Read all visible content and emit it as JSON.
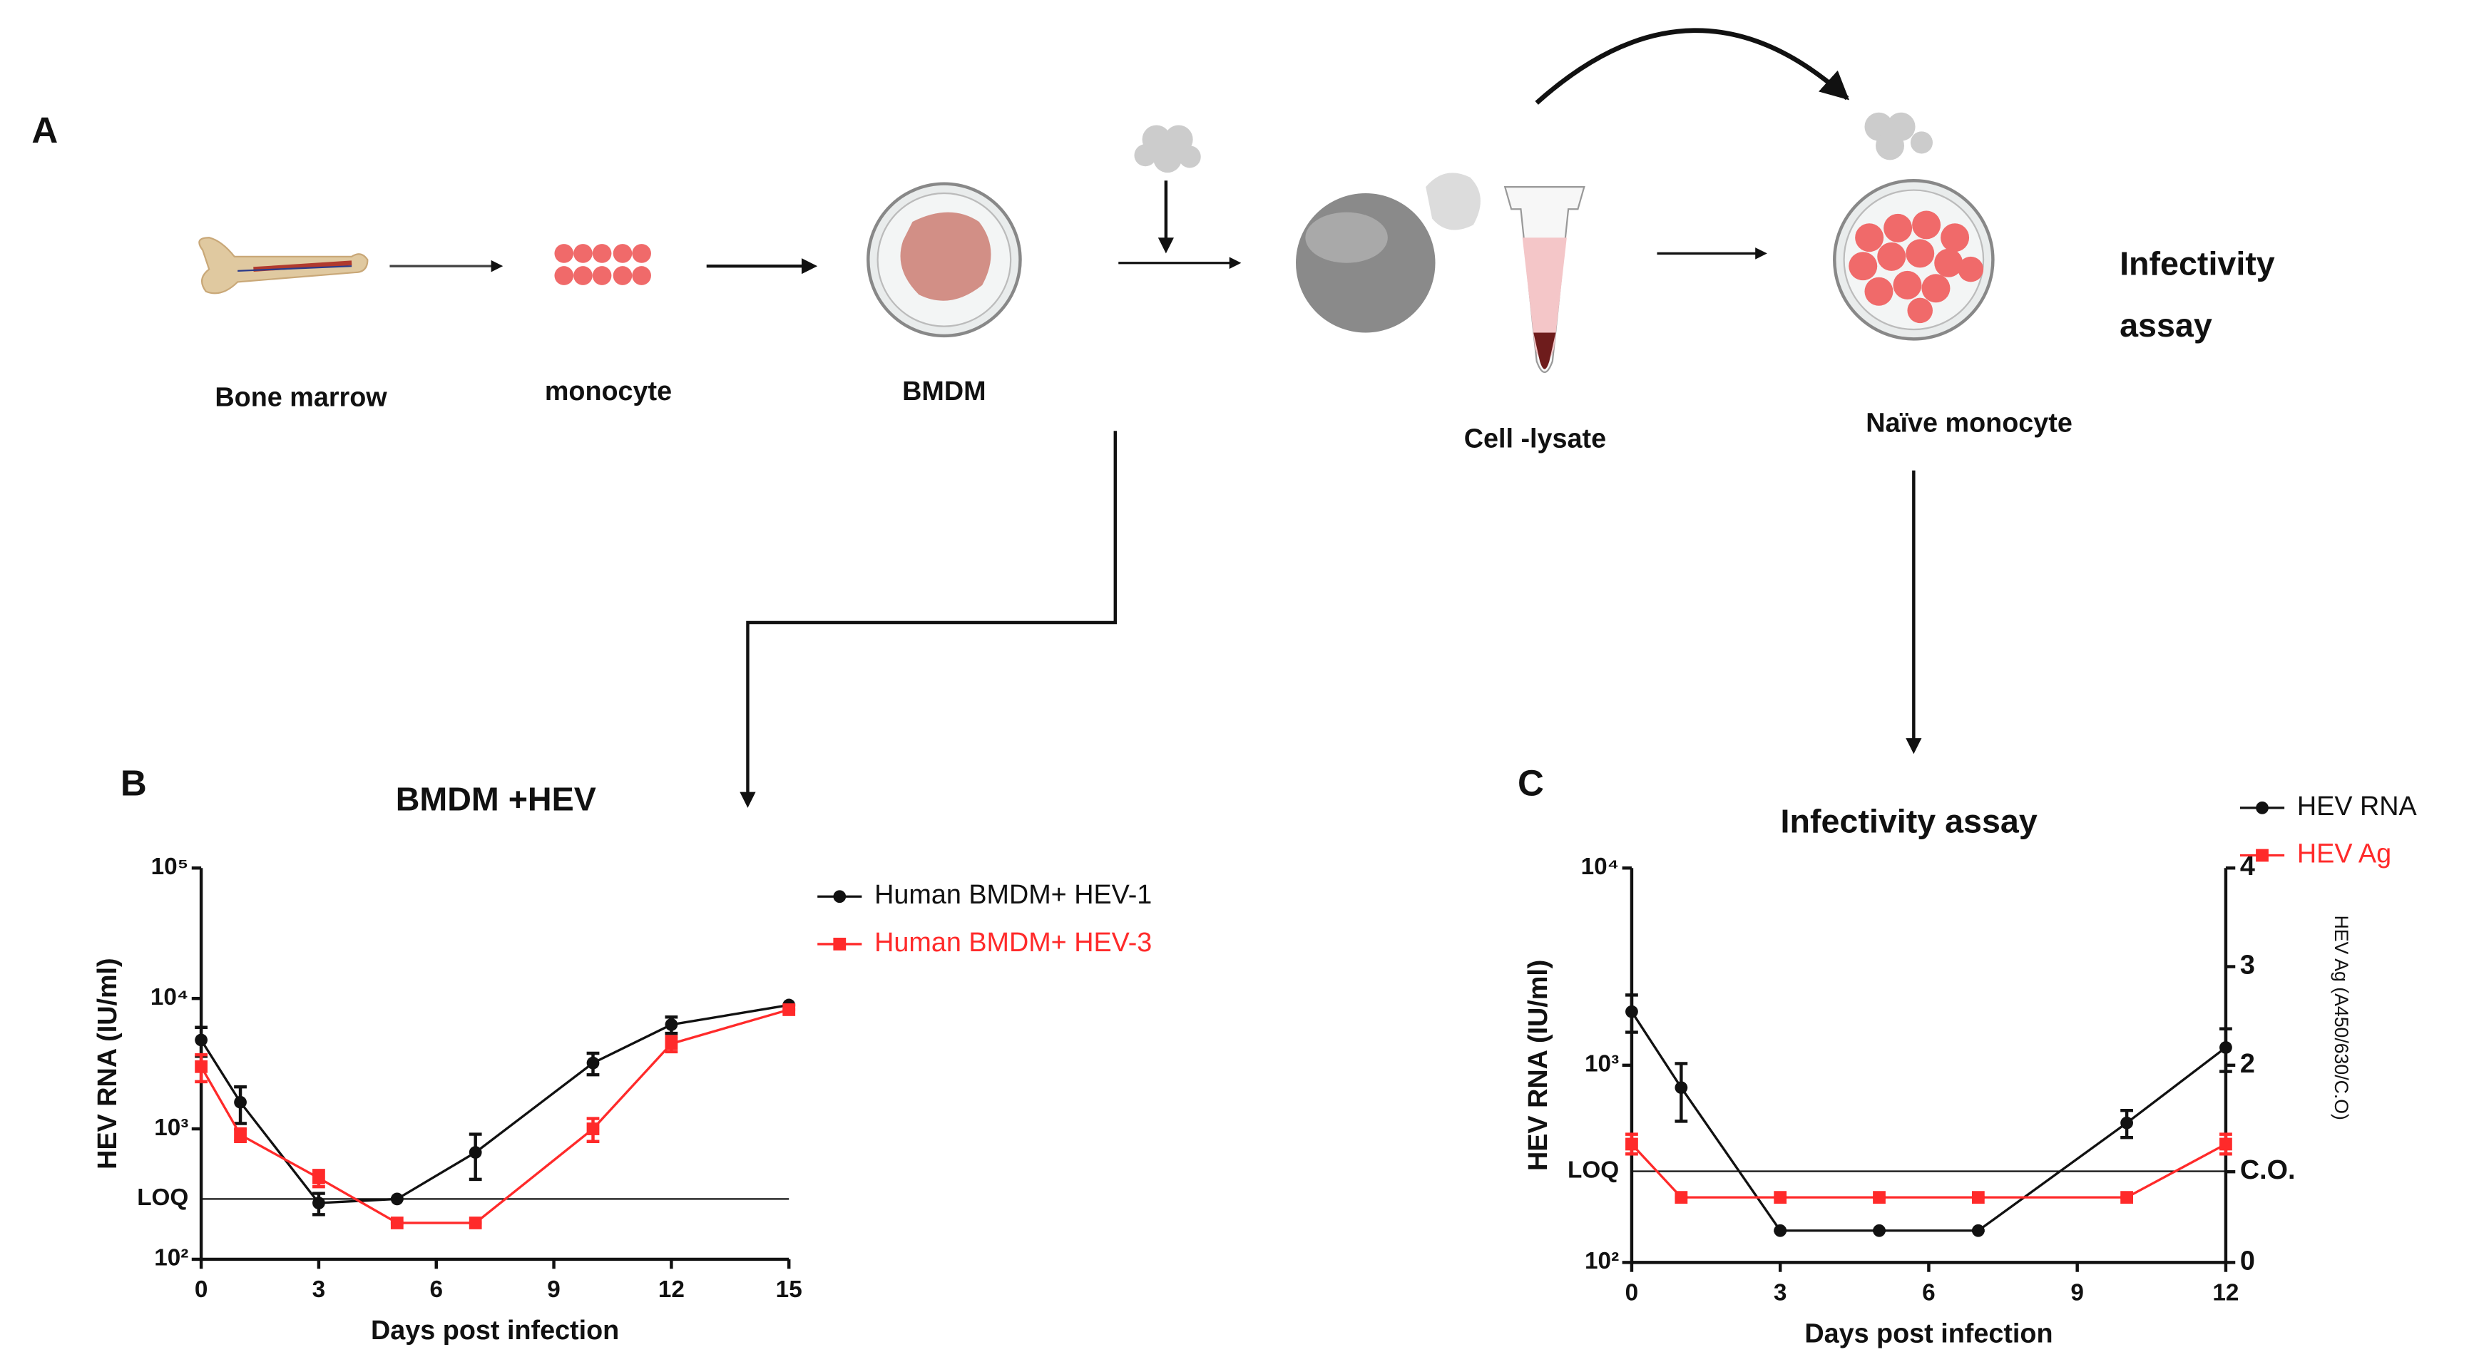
{
  "panel_labels": [
    "A",
    "B",
    "C"
  ],
  "diagram": {
    "steps": [
      "Bone marrow",
      "monocyte",
      "BMDM",
      "Cell -lysate",
      "Naïve monocyte"
    ],
    "side_label": [
      "Infectivity",
      "assay"
    ]
  },
  "chart_data": [
    {
      "type": "line",
      "title": "BMDM +HEV",
      "x_label": "Days post infection",
      "y_label": "HEV RNA (IU/ml)",
      "xlim": [
        0,
        15
      ],
      "xticks": [
        0,
        3,
        6,
        9,
        12,
        15
      ],
      "ylim": [
        100,
        100000
      ],
      "y_scale": "log",
      "yticks": [
        {
          "value": 100,
          "label": "10²"
        },
        {
          "value": 1000,
          "label": "10³"
        },
        {
          "value": 10000,
          "label": "10⁴"
        },
        {
          "value": 100000,
          "label": "10⁵"
        }
      ],
      "reference_line": {
        "value": 290,
        "label": "LOQ"
      },
      "series": [
        {
          "name": "Human BMDM+ HEV-1",
          "color": "#111111",
          "marker": "circle",
          "x": [
            0,
            1,
            3,
            5,
            7,
            10,
            12,
            15
          ],
          "values": [
            4800,
            1600,
            270,
            290,
            660,
            3200,
            6300,
            8900
          ],
          "errors": [
            1200,
            500,
            50,
            0,
            250,
            600,
            900,
            0
          ]
        },
        {
          "name": "Human BMDM+ HEV-3",
          "color": "#ff2a2a",
          "marker": "square",
          "x": [
            0,
            1,
            3,
            5,
            7,
            10,
            12,
            15
          ],
          "values": [
            3000,
            900,
            420,
            190,
            190,
            1000,
            4500,
            8200
          ],
          "errors": [
            700,
            100,
            60,
            0,
            0,
            200,
            600,
            0
          ]
        }
      ]
    },
    {
      "type": "line",
      "title": "Infectivity assay",
      "x_label": "Days post infection",
      "y_label": "HEV RNA (IU/ml)",
      "y2_label": "HEV Ag (A450/630/C.O)",
      "xlim": [
        0,
        12
      ],
      "xticks": [
        0,
        3,
        6,
        9,
        12
      ],
      "ylim": [
        100,
        10000
      ],
      "y_scale": "log",
      "yticks": [
        {
          "value": 100,
          "label": "10²"
        },
        {
          "value": 1000,
          "label": "10³"
        },
        {
          "value": 10000,
          "label": "10⁴"
        }
      ],
      "reference_line": {
        "value": 290,
        "label": "LOQ"
      },
      "y2lim": [
        0,
        4
      ],
      "y2ticks": [
        0,
        {
          "value": 0.92,
          "label": "C.O."
        },
        2,
        3,
        4
      ],
      "series": [
        {
          "name": "HEV RNA",
          "color": "#111111",
          "marker": "circle",
          "x": [
            0,
            1,
            3,
            5,
            7,
            10,
            12
          ],
          "values": [
            1870,
            770,
            145,
            145,
            145,
            510,
            1230
          ],
          "errors": [
            400,
            250,
            0,
            0,
            0,
            80,
            300
          ]
        },
        {
          "name": "HEV Ag",
          "color": "#ff2a2a",
          "marker": "square",
          "axis": "y2",
          "x": [
            0,
            1,
            3,
            5,
            7,
            10,
            12
          ],
          "values": [
            1.2,
            0.66,
            0.66,
            0.66,
            0.66,
            0.66,
            1.2
          ],
          "errors": [
            0.1,
            0,
            0,
            0,
            0,
            0,
            0.1
          ]
        }
      ]
    }
  ]
}
